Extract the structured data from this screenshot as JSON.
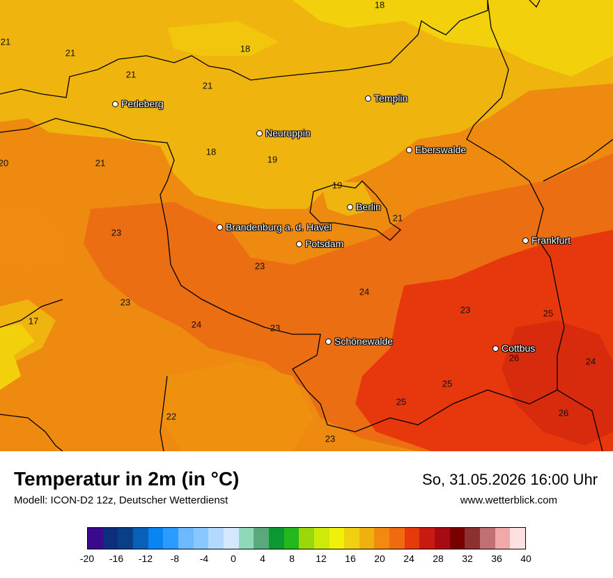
{
  "map": {
    "cities": [
      {
        "name": "Perleberg"
      },
      {
        "name": "Templin"
      },
      {
        "name": "Neuruppin"
      },
      {
        "name": "Eberswalde"
      },
      {
        "name": "Berlin"
      },
      {
        "name": "Brandenburg a. d. Havel"
      },
      {
        "name": "Potsdam"
      },
      {
        "name": "Frankfurt"
      },
      {
        "name": "Schönewalde"
      },
      {
        "name": "Cottbus"
      }
    ],
    "isotherm_labels": [
      "18",
      "21",
      "21",
      "18",
      "21",
      "21",
      "21",
      "18",
      "19",
      "20",
      "21",
      "19",
      "21",
      "23",
      "23",
      "23",
      "17",
      "24",
      "23",
      "24",
      "23",
      "25",
      "26",
      "24",
      "25",
      "25",
      "26",
      "22",
      "23"
    ]
  },
  "footer": {
    "title": "Temperatur in 2m (in °C)",
    "model": "Modell: ICON-D2 12z, Deutscher Wetterdienst",
    "datetime": "So, 31.05.2026 16:00 Uhr",
    "website": "www.wetterblick.com"
  },
  "legend": {
    "colors": [
      "#3a0a8c",
      "#0d2e7c",
      "#083f86",
      "#0a5fb8",
      "#0a84f0",
      "#2a9cff",
      "#6db8ff",
      "#8ac7ff",
      "#b3d9ff",
      "#d4e8ff",
      "#8fd9b8",
      "#5aa97c",
      "#0b9a32",
      "#22b81e",
      "#9ad80a",
      "#cdeb0a",
      "#f0f00a",
      "#f0d010",
      "#f0b010",
      "#f08a10",
      "#f06a10",
      "#e63a0a",
      "#c81a10",
      "#a80a14",
      "#7a0000",
      "#8c3030",
      "#c07070",
      "#f0a8a8",
      "#fde0e0"
    ],
    "ticks": [
      "-20",
      "-16",
      "-12",
      "-8",
      "-4",
      "0",
      "4",
      "8",
      "12",
      "16",
      "20",
      "24",
      "28",
      "32",
      "36",
      "40"
    ]
  }
}
